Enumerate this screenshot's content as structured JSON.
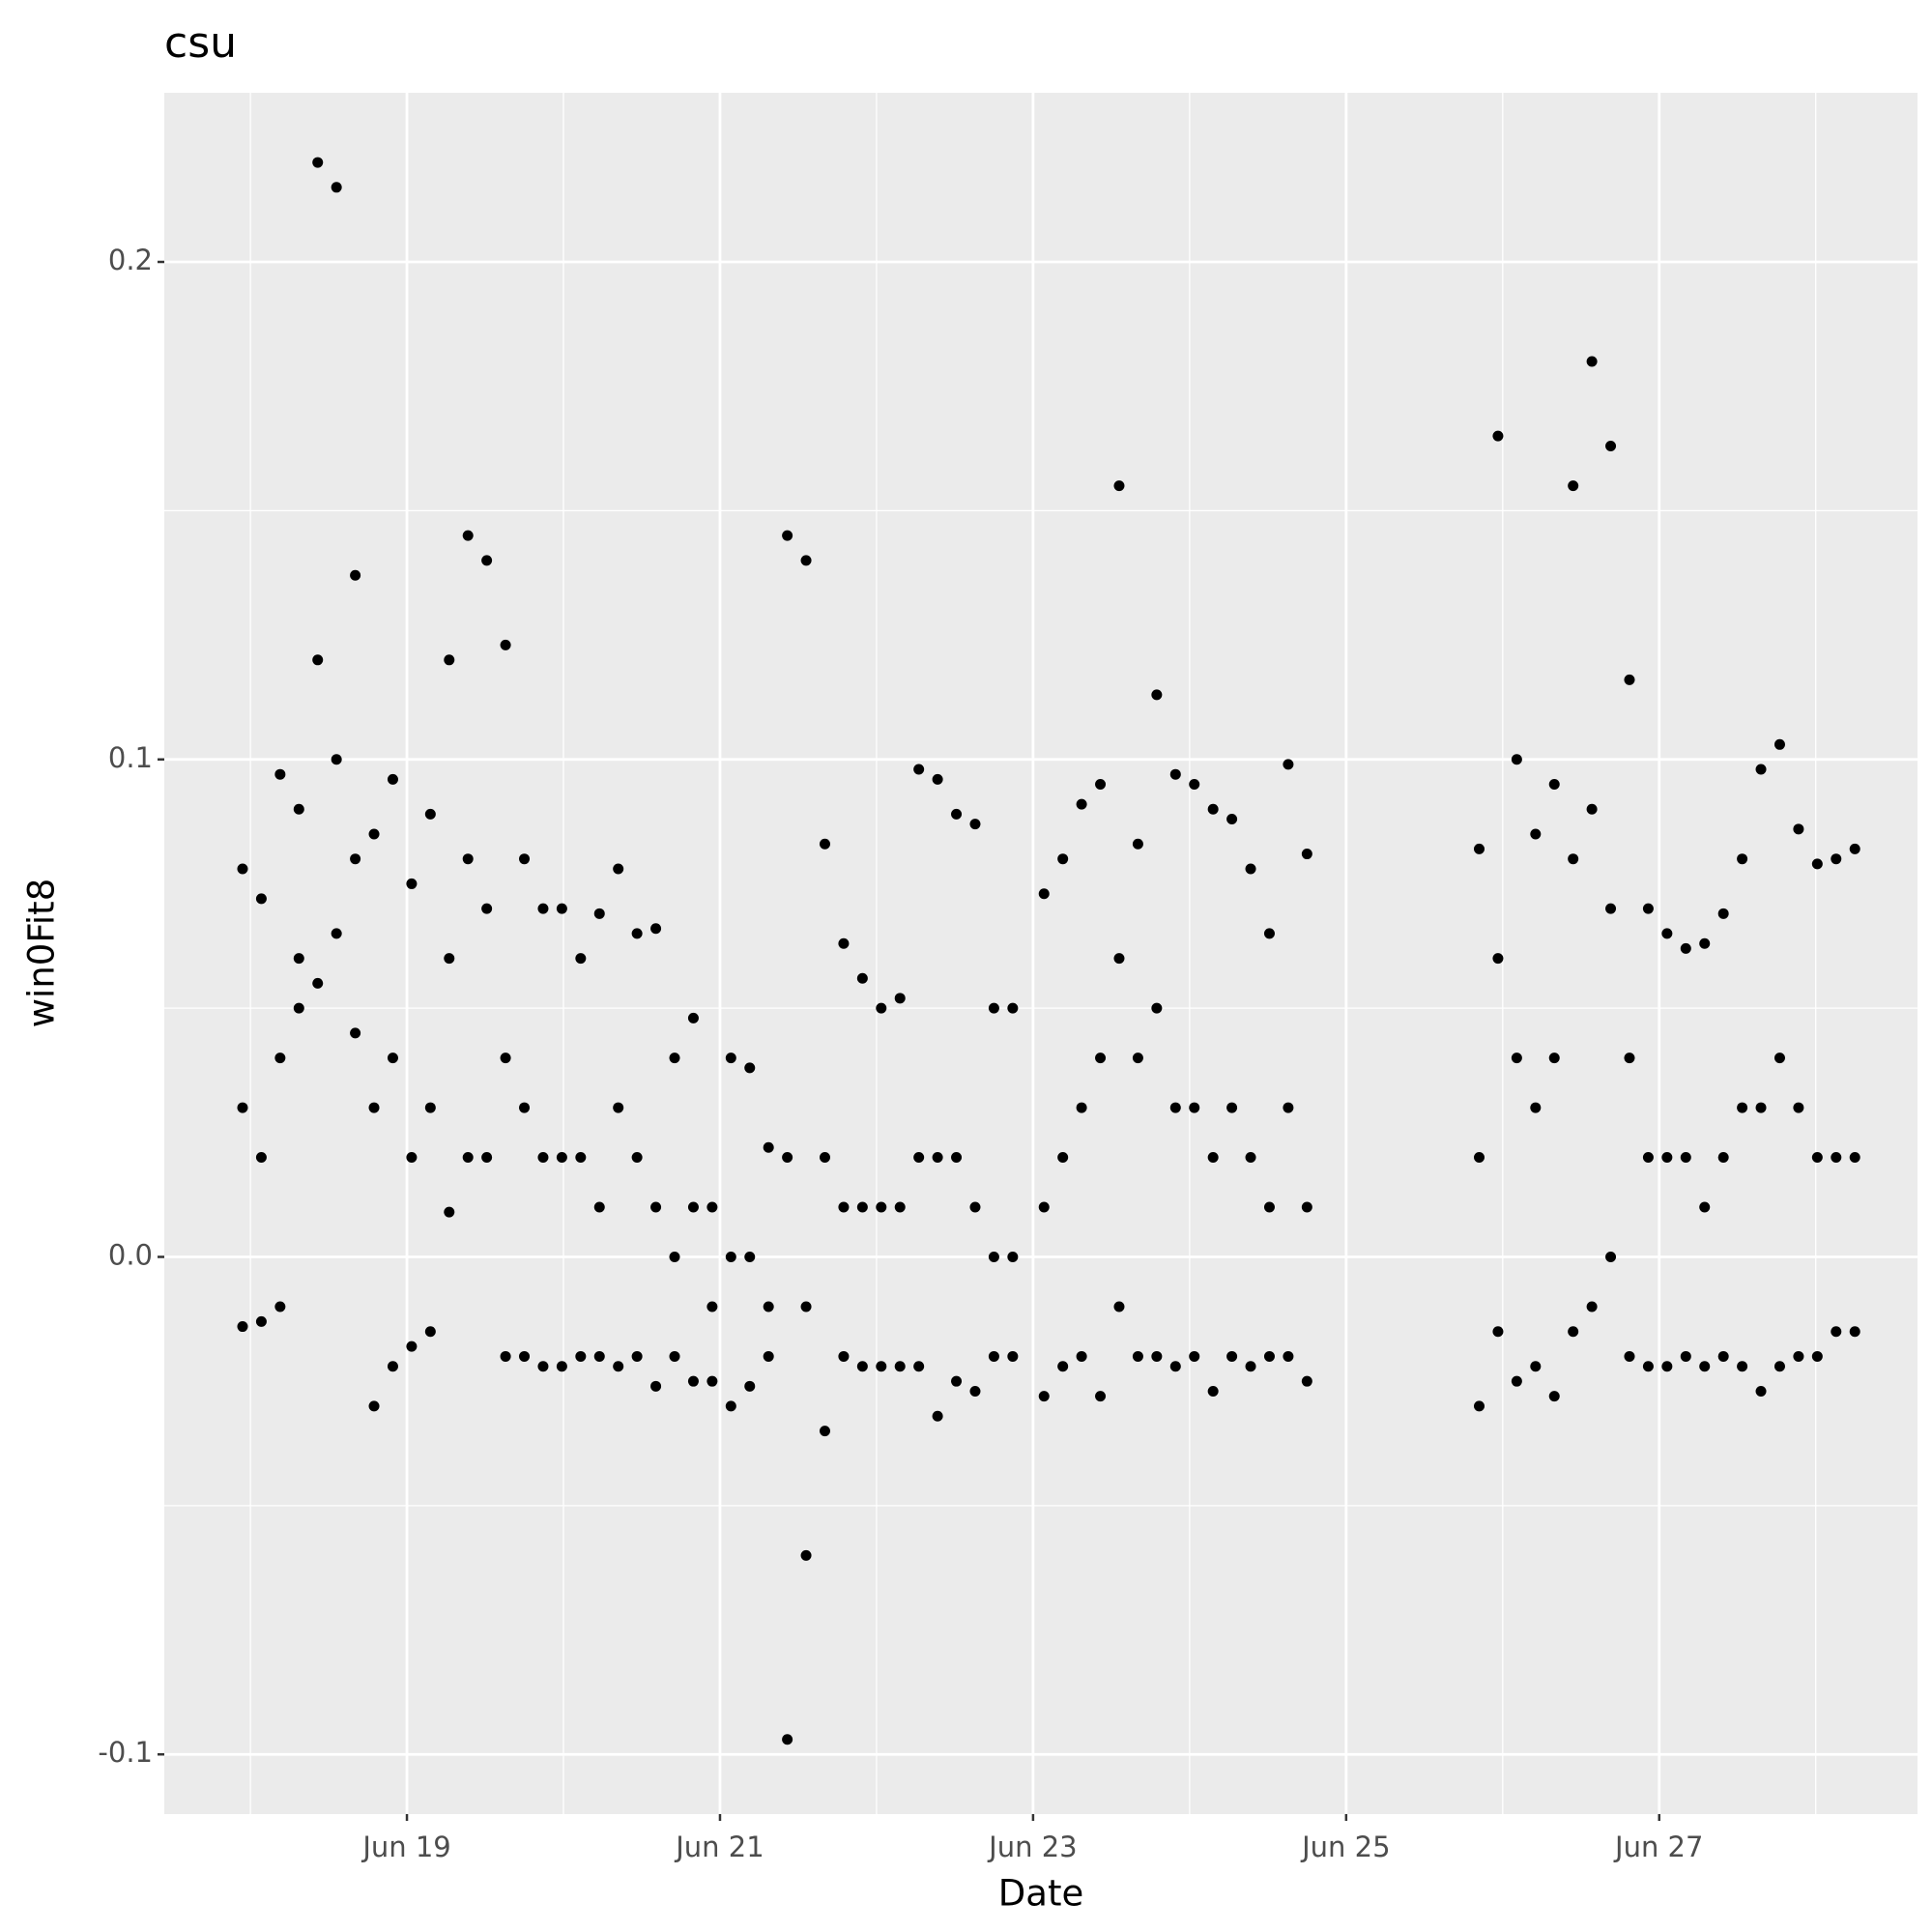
{
  "chart_data": {
    "type": "scatter",
    "title": "csu",
    "x_label": "Date",
    "y_label": "win0Fit8",
    "color": "#000000",
    "grid": true,
    "xlim": [
      17.45,
      28.65
    ],
    "ylim": [
      -0.112,
      0.234
    ],
    "xticks": [
      {
        "value": 19,
        "label": "Jun 19"
      },
      {
        "value": 21,
        "label": "Jun 21"
      },
      {
        "value": 23,
        "label": "Jun 23"
      },
      {
        "value": 25,
        "label": "Jun 25"
      },
      {
        "value": 27,
        "label": "Jun 27"
      }
    ],
    "yticks": [
      -0.1,
      {
        "value": 0,
        "label": "0.0"
      },
      0.1,
      0.2
    ],
    "x": [
      17.95,
      17.95,
      17.95,
      18.07,
      18.07,
      18.07,
      18.19,
      18.19,
      18.19,
      18.31,
      18.31,
      18.31,
      18.43,
      18.43,
      18.43,
      18.55,
      18.55,
      18.55,
      18.67,
      18.67,
      18.67,
      18.79,
      18.79,
      18.79,
      18.91,
      18.91,
      18.91,
      19.03,
      19.03,
      19.03,
      19.15,
      19.15,
      19.15,
      19.27,
      19.27,
      19.27,
      19.39,
      19.39,
      19.39,
      19.51,
      19.51,
      19.51,
      19.63,
      19.63,
      19.63,
      19.75,
      19.75,
      19.75,
      19.87,
      19.87,
      19.87,
      19.99,
      19.99,
      19.99,
      20.11,
      20.11,
      20.11,
      20.23,
      20.23,
      20.23,
      20.35,
      20.35,
      20.35,
      20.47,
      20.47,
      20.47,
      20.59,
      20.59,
      20.59,
      20.71,
      20.71,
      20.71,
      20.83,
      20.83,
      20.83,
      20.95,
      20.95,
      20.95,
      21.07,
      21.07,
      21.07,
      21.19,
      21.19,
      21.19,
      21.31,
      21.31,
      21.31,
      21.43,
      21.43,
      21.43,
      21.55,
      21.55,
      21.55,
      21.67,
      21.67,
      21.67,
      21.79,
      21.79,
      21.79,
      21.91,
      21.91,
      21.91,
      22.03,
      22.03,
      22.03,
      22.15,
      22.15,
      22.15,
      22.27,
      22.27,
      22.27,
      22.39,
      22.39,
      22.39,
      22.51,
      22.51,
      22.51,
      22.63,
      22.63,
      22.63,
      22.75,
      22.75,
      22.75,
      22.87,
      22.87,
      22.87,
      23.07,
      23.07,
      23.07,
      23.19,
      23.19,
      23.19,
      23.31,
      23.31,
      23.31,
      23.43,
      23.43,
      23.43,
      23.55,
      23.55,
      23.55,
      23.67,
      23.67,
      23.67,
      23.79,
      23.79,
      23.79,
      23.91,
      23.91,
      23.91,
      24.03,
      24.03,
      24.03,
      24.15,
      24.15,
      24.15,
      24.27,
      24.27,
      24.27,
      24.39,
      24.39,
      24.39,
      24.51,
      24.51,
      24.51,
      24.63,
      24.63,
      24.63,
      24.75,
      24.75,
      24.75,
      25.85,
      25.85,
      25.85,
      25.97,
      25.97,
      25.97,
      26.09,
      26.09,
      26.09,
      26.21,
      26.21,
      26.21,
      26.33,
      26.33,
      26.33,
      26.45,
      26.45,
      26.45,
      26.57,
      26.57,
      26.57,
      26.69,
      26.69,
      26.69,
      26.81,
      26.81,
      26.81,
      26.93,
      26.93,
      26.93,
      27.05,
      27.05,
      27.05,
      27.17,
      27.17,
      27.17,
      27.29,
      27.29,
      27.29,
      27.41,
      27.41,
      27.41,
      27.53,
      27.53,
      27.53,
      27.65,
      27.65,
      27.65,
      27.77,
      27.77,
      27.77,
      27.89,
      27.89,
      27.89,
      28.01,
      28.01,
      28.01,
      28.13,
      28.13,
      28.13,
      28.25,
      28.25,
      28.25
    ],
    "values": [
      0.078,
      0.03,
      -0.014,
      0.072,
      0.02,
      -0.013,
      0.097,
      0.04,
      -0.01,
      0.09,
      0.06,
      0.05,
      0.22,
      0.12,
      0.055,
      0.215,
      0.1,
      0.065,
      0.137,
      0.08,
      0.045,
      0.085,
      0.03,
      -0.03,
      0.096,
      0.04,
      -0.022,
      0.075,
      0.02,
      -0.018,
      0.089,
      0.03,
      -0.015,
      0.12,
      0.06,
      0.009,
      0.145,
      0.08,
      0.02,
      0.14,
      0.07,
      0.02,
      0.123,
      0.04,
      -0.02,
      0.08,
      0.03,
      -0.02,
      0.07,
      0.02,
      -0.022,
      0.07,
      0.02,
      -0.022,
      0.06,
      0.02,
      -0.02,
      0.069,
      0.01,
      -0.02,
      0.078,
      0.03,
      -0.022,
      0.065,
      0.02,
      -0.02,
      0.066,
      0.01,
      -0.026,
      0.04,
      0.0,
      -0.02,
      0.048,
      0.01,
      -0.025,
      0.01,
      -0.01,
      -0.025,
      0.04,
      0.0,
      -0.03,
      0.038,
      0.0,
      -0.026,
      0.022,
      -0.01,
      -0.02,
      0.145,
      0.02,
      -0.097,
      0.14,
      -0.01,
      -0.06,
      0.083,
      0.02,
      -0.035,
      0.063,
      0.01,
      -0.02,
      0.056,
      0.01,
      -0.022,
      0.05,
      0.01,
      -0.022,
      0.052,
      0.01,
      -0.022,
      0.098,
      0.02,
      -0.022,
      0.096,
      0.02,
      -0.032,
      0.089,
      0.02,
      -0.025,
      0.087,
      0.01,
      -0.027,
      0.05,
      0.0,
      -0.02,
      0.05,
      0.0,
      -0.02,
      0.073,
      0.01,
      -0.028,
      0.08,
      0.02,
      -0.022,
      0.091,
      0.03,
      -0.02,
      0.095,
      0.04,
      -0.028,
      0.155,
      0.06,
      -0.01,
      0.083,
      0.04,
      -0.02,
      0.113,
      0.05,
      -0.02,
      0.097,
      0.03,
      -0.022,
      0.095,
      0.03,
      -0.02,
      0.09,
      0.02,
      -0.027,
      0.088,
      0.03,
      -0.02,
      0.078,
      0.02,
      -0.022,
      0.065,
      0.01,
      -0.02,
      0.099,
      0.03,
      -0.02,
      0.081,
      0.01,
      -0.025,
      0.082,
      0.02,
      -0.03,
      0.165,
      0.06,
      -0.015,
      0.1,
      0.04,
      -0.025,
      0.085,
      0.03,
      -0.022,
      0.095,
      0.04,
      -0.028,
      0.155,
      0.08,
      -0.015,
      0.18,
      0.09,
      -0.01,
      0.163,
      0.07,
      0.0,
      0.116,
      0.04,
      -0.02,
      0.07,
      0.02,
      -0.022,
      0.065,
      0.02,
      -0.022,
      0.062,
      0.02,
      -0.02,
      0.063,
      0.01,
      -0.022,
      0.069,
      0.02,
      -0.02,
      0.08,
      0.03,
      -0.022,
      0.098,
      0.03,
      -0.027,
      0.103,
      0.04,
      -0.022,
      0.086,
      0.03,
      -0.02,
      0.079,
      0.02,
      -0.02,
      0.08,
      0.02,
      -0.015,
      0.082,
      0.02,
      -0.015
    ]
  }
}
